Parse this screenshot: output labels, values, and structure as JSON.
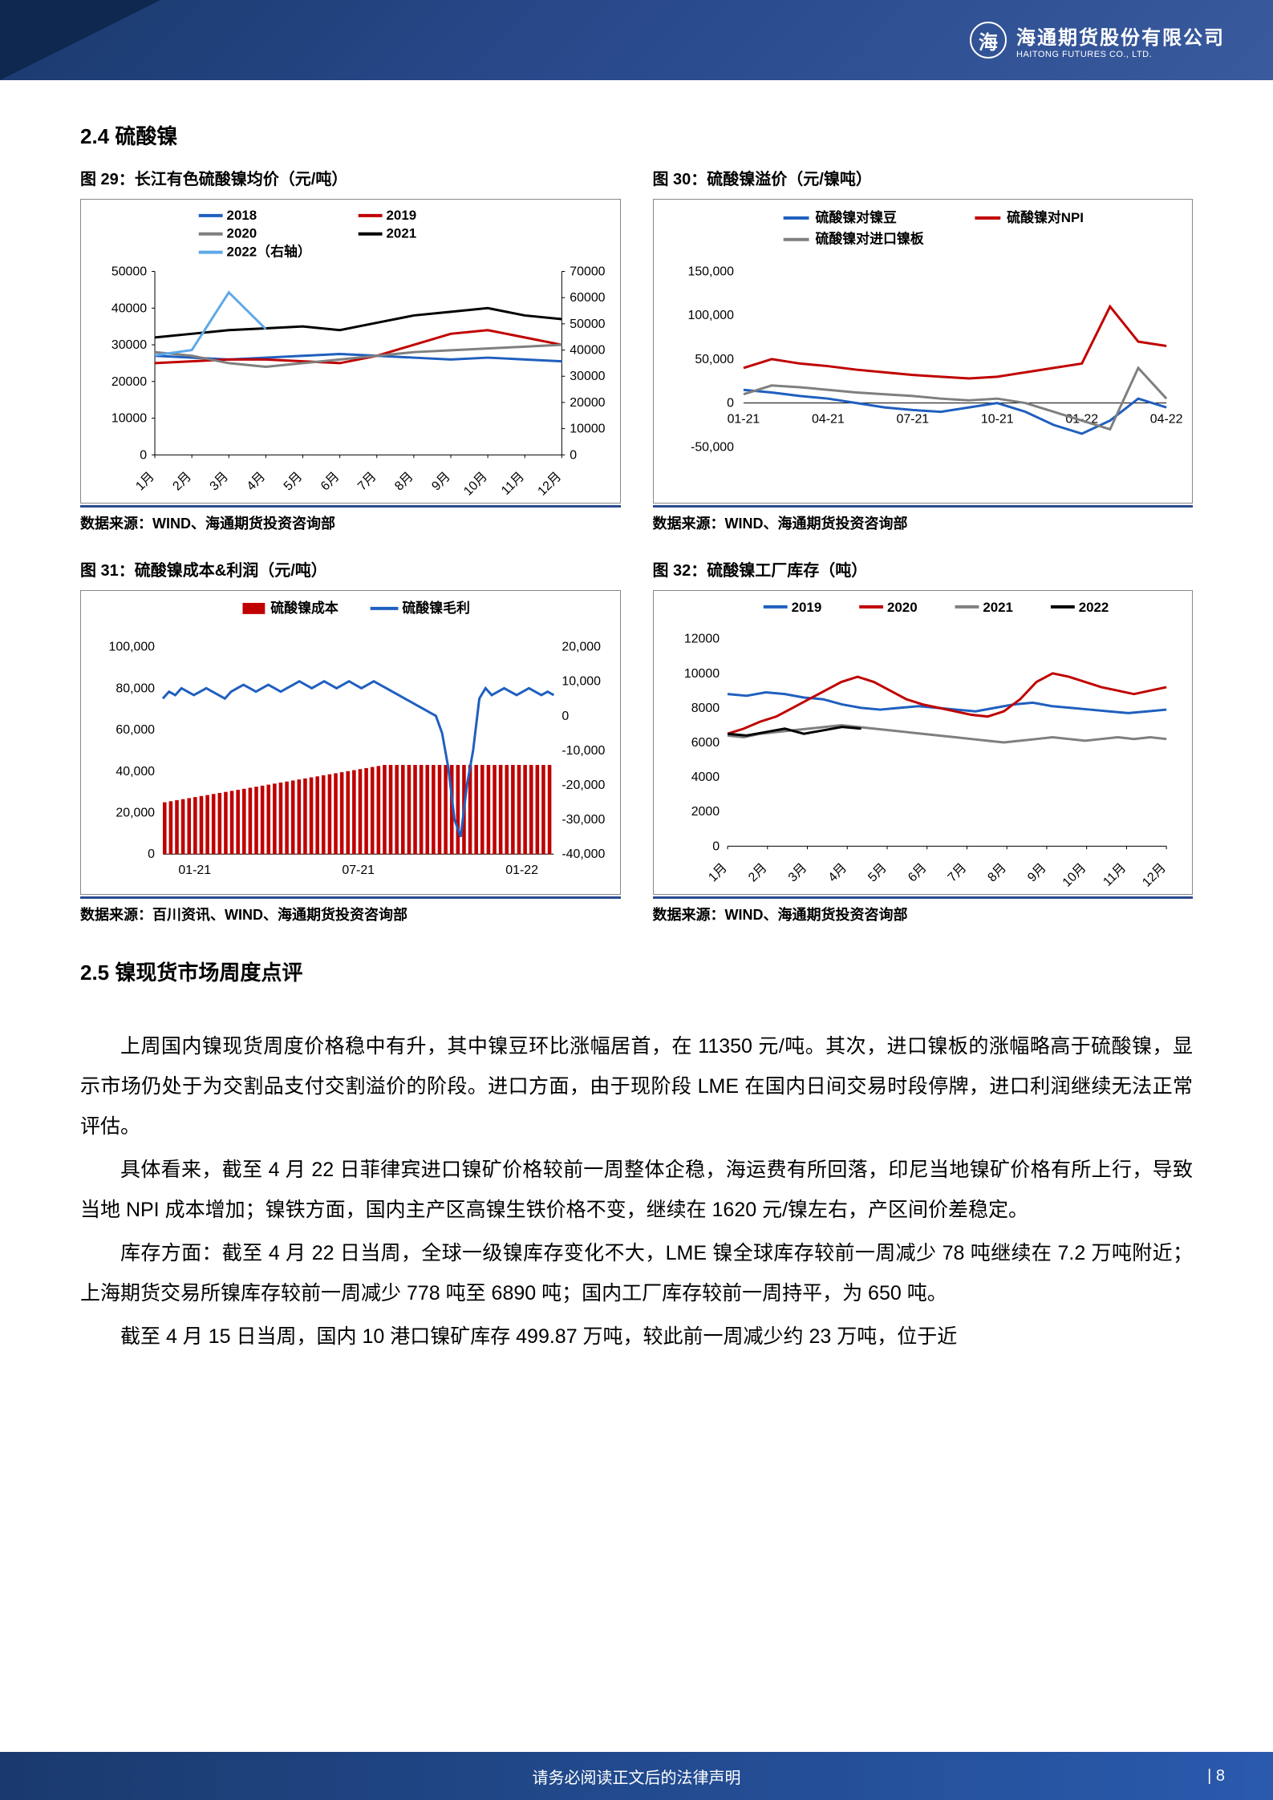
{
  "header": {
    "logo_cn": "海通期货股份有限公司",
    "logo_en": "HAITONG FUTURES CO., LTD."
  },
  "section24": {
    "title": "2.4 硫酸镍"
  },
  "section25": {
    "title": "2.5 镍现货市场周度点评"
  },
  "chart29": {
    "title": "图 29：长江有色硫酸镍均价（元/吨）",
    "source": "数据来源：WIND、海通期货投资咨询部",
    "type": "line",
    "x_labels": [
      "1月",
      "2月",
      "3月",
      "4月",
      "5月",
      "6月",
      "7月",
      "8月",
      "9月",
      "10月",
      "11月",
      "12月"
    ],
    "y_left": {
      "min": 0,
      "max": 50000,
      "step": 10000
    },
    "y_right": {
      "min": 0,
      "max": 70000,
      "step": 10000
    },
    "series": [
      {
        "name": "2018",
        "color": "#1f5fbf",
        "width": 3,
        "axis": "left",
        "data": [
          27000,
          26500,
          26000,
          26500,
          27000,
          27500,
          27000,
          26500,
          26000,
          26500,
          26000,
          25500
        ]
      },
      {
        "name": "2019",
        "color": "#c00000",
        "width": 3,
        "axis": "left",
        "data": [
          25000,
          25500,
          26000,
          26000,
          25500,
          25000,
          27000,
          30000,
          33000,
          34000,
          32000,
          30000
        ]
      },
      {
        "name": "2020",
        "color": "#7f7f7f",
        "width": 3,
        "axis": "left",
        "data": [
          28000,
          27000,
          25000,
          24000,
          25000,
          26000,
          27000,
          28000,
          28500,
          29000,
          29500,
          30000
        ]
      },
      {
        "name": "2021",
        "color": "#000000",
        "width": 3,
        "axis": "left",
        "data": [
          32000,
          33000,
          34000,
          34500,
          35000,
          34000,
          36000,
          38000,
          39000,
          40000,
          38000,
          37000
        ]
      },
      {
        "name": "2022（右轴）",
        "color": "#5fa8e8",
        "width": 3,
        "axis": "right",
        "data": [
          38000,
          40000,
          62000,
          48000,
          null,
          null,
          null,
          null,
          null,
          null,
          null,
          null
        ]
      }
    ]
  },
  "chart30": {
    "title": "图 30：硫酸镍溢价（元/镍吨）",
    "source": "数据来源：WIND、海通期货投资咨询部",
    "type": "line",
    "x_labels": [
      "01-21",
      "04-21",
      "07-21",
      "10-21",
      "01-22",
      "04-22"
    ],
    "y": {
      "min": -50000,
      "max": 150000,
      "step": 50000
    },
    "series": [
      {
        "name": "硫酸镍对镍豆",
        "color": "#1f5fbf",
        "width": 3,
        "data": [
          15000,
          12000,
          8000,
          5000,
          0,
          -5000,
          -8000,
          -10000,
          -5000,
          0,
          -10000,
          -25000,
          -35000,
          -20000,
          5000,
          -5000
        ]
      },
      {
        "name": "硫酸镍对NPI",
        "color": "#c00000",
        "width": 3,
        "data": [
          40000,
          50000,
          45000,
          42000,
          38000,
          35000,
          32000,
          30000,
          28000,
          30000,
          35000,
          40000,
          45000,
          110000,
          70000,
          65000
        ]
      },
      {
        "name": "硫酸镍对进口镍板",
        "color": "#7f7f7f",
        "width": 3,
        "data": [
          10000,
          20000,
          18000,
          15000,
          12000,
          10000,
          8000,
          5000,
          3000,
          5000,
          0,
          -10000,
          -20000,
          -30000,
          40000,
          5000
        ]
      }
    ]
  },
  "chart31": {
    "title": "图 31：硫酸镍成本&利润（元/吨）",
    "source": "数据来源：百川资讯、WIND、海通期货投资咨询部",
    "type": "bar+line",
    "x_labels": [
      "01-21",
      "07-21",
      "01-22"
    ],
    "y_left": {
      "min": 0,
      "max": 100000,
      "step": 20000
    },
    "y_right": {
      "min": -40000,
      "max": 20000,
      "step": 10000
    },
    "bar": {
      "name": "硫酸镍成本",
      "color": "#c00000",
      "data": [
        25000,
        25500,
        26000,
        26500,
        27000,
        27500,
        28000,
        28500,
        29000,
        29500,
        30000,
        30500,
        31000,
        31500,
        32000,
        32500,
        33000,
        33500,
        34000,
        34500,
        35000,
        35500,
        36000,
        36500,
        37000,
        37500,
        38000,
        38500,
        39000,
        39500,
        40000,
        40500,
        41000,
        41500,
        42000,
        42500,
        43000,
        43000,
        43000,
        43000,
        43000,
        43000,
        43000,
        43000,
        43000,
        43000,
        43000,
        43000,
        43000,
        43000,
        43000,
        43000,
        43000,
        43000,
        43000,
        43000,
        43000,
        43000,
        43000,
        43000,
        43000,
        43000,
        43000,
        43000
      ]
    },
    "line": {
      "name": "硫酸镍毛利",
      "color": "#1f5fbf",
      "width": 3,
      "data": [
        5000,
        7000,
        6000,
        8000,
        7000,
        6000,
        7000,
        8000,
        7000,
        6000,
        5000,
        7000,
        8000,
        9000,
        8000,
        7000,
        8000,
        9000,
        8000,
        7000,
        8000,
        9000,
        10000,
        9000,
        8000,
        9000,
        10000,
        9000,
        8000,
        9000,
        10000,
        9000,
        8000,
        9000,
        10000,
        9000,
        8000,
        7000,
        6000,
        5000,
        4000,
        3000,
        2000,
        1000,
        0,
        -5000,
        -15000,
        -30000,
        -35000,
        -20000,
        -10000,
        5000,
        8000,
        6000,
        7000,
        8000,
        7000,
        6000,
        7000,
        8000,
        7000,
        6000,
        7000,
        6000
      ]
    }
  },
  "chart32": {
    "title": "图 32：硫酸镍工厂库存（吨）",
    "source": "数据来源：WIND、海通期货投资咨询部",
    "type": "line",
    "x_labels": [
      "1月",
      "2月",
      "3月",
      "4月",
      "5月",
      "6月",
      "7月",
      "8月",
      "9月",
      "10月",
      "11月",
      "12月"
    ],
    "y": {
      "min": 0,
      "max": 12000,
      "step": 2000
    },
    "series": [
      {
        "name": "2019",
        "color": "#1f5fbf",
        "width": 3,
        "data": [
          8800,
          8700,
          8900,
          8800,
          8600,
          8500,
          8200,
          8000,
          7900,
          8000,
          8100,
          8000,
          7900,
          7800,
          8000,
          8200,
          8300,
          8100,
          8000,
          7900,
          7800,
          7700,
          7800,
          7900
        ]
      },
      {
        "name": "2020",
        "color": "#c00000",
        "width": 3,
        "data": [
          6500,
          6800,
          7200,
          7500,
          8000,
          8500,
          9000,
          9500,
          9800,
          9500,
          9000,
          8500,
          8200,
          8000,
          7800,
          7600,
          7500,
          7800,
          8500,
          9500,
          10000,
          9800,
          9500,
          9200,
          9000,
          8800,
          9000,
          9200
        ]
      },
      {
        "name": "2021",
        "color": "#7f7f7f",
        "width": 3,
        "data": [
          6400,
          6300,
          6500,
          6600,
          6700,
          6800,
          6900,
          7000,
          6900,
          6800,
          6700,
          6600,
          6500,
          6400,
          6300,
          6200,
          6100,
          6000,
          6100,
          6200,
          6300,
          6200,
          6100,
          6200,
          6300,
          6200,
          6300,
          6200
        ]
      },
      {
        "name": "2022",
        "color": "#000000",
        "width": 3,
        "data": [
          6500,
          6400,
          6600,
          6800,
          6500,
          6700,
          6900,
          6800,
          null,
          null,
          null,
          null,
          null,
          null,
          null,
          null,
          null,
          null,
          null,
          null,
          null,
          null,
          null,
          null
        ]
      }
    ]
  },
  "body": {
    "p1": "上周国内镍现货周度价格稳中有升，其中镍豆环比涨幅居首，在 11350 元/吨。其次，进口镍板的涨幅略高于硫酸镍，显示市场仍处于为交割品支付交割溢价的阶段。进口方面，由于现阶段 LME 在国内日间交易时段停牌，进口利润继续无法正常评估。",
    "p2": "具体看来，截至 4 月 22 日菲律宾进口镍矿价格较前一周整体企稳，海运费有所回落，印尼当地镍矿价格有所上行，导致当地 NPI 成本增加；镍铁方面，国内主产区高镍生铁价格不变，继续在 1620 元/镍左右，产区间价差稳定。",
    "p3": "库存方面：截至 4 月 22 日当周，全球一级镍库存变化不大，LME 镍全球库存较前一周减少 78 吨继续在 7.2 万吨附近；上海期货交易所镍库存较前一周减少 778 吨至 6890 吨；国内工厂库存较前一周持平，为 650 吨。",
    "p4": "截至 4 月 15 日当周，国内 10 港口镍矿库存 499.87 万吨，较此前一周减少约 23 万吨，位于近"
  },
  "footer": {
    "text": "请务必阅读正文后的法律声明",
    "page": "| 8"
  }
}
